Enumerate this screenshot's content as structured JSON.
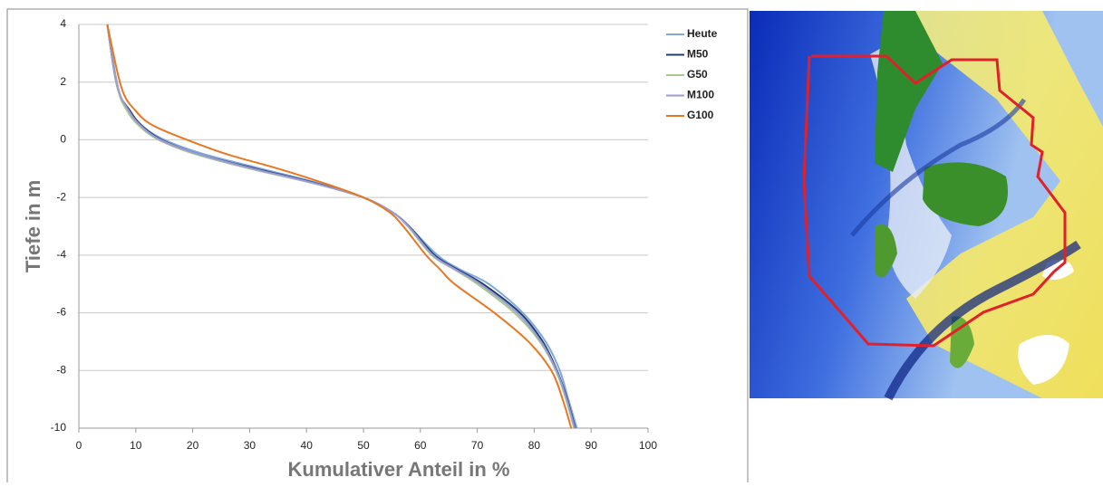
{
  "chart_data": {
    "type": "line",
    "xlabel": "Kumulativer Anteil in %",
    "ylabel": "Tiefe in m",
    "xlim": [
      0,
      100
    ],
    "xticks": [
      0,
      10,
      20,
      30,
      40,
      50,
      60,
      70,
      80,
      90,
      100
    ],
    "ylim": [
      -10,
      4
    ],
    "yticks": [
      -10,
      -8,
      -6,
      -4,
      -2,
      0,
      2,
      4
    ],
    "grid": true,
    "legend": "upper right",
    "series": [
      {
        "name": "Heute",
        "color": "#7fa9db",
        "x": [
          5,
          6.8,
          9,
          11,
          15,
          22,
          32,
          42,
          50,
          55,
          58,
          63,
          67,
          72,
          78,
          82,
          84.5,
          86,
          87.5
        ],
        "values": [
          4,
          1.8,
          1,
          0.5,
          0,
          -0.5,
          -1,
          -1.5,
          -2,
          -2.5,
          -3,
          -4,
          -4.5,
          -5,
          -6,
          -7,
          -8,
          -9,
          -10
        ]
      },
      {
        "name": "M50",
        "color": "#1f3b73",
        "x": [
          5,
          6.8,
          9,
          11,
          14.5,
          21,
          31,
          41.5,
          50,
          55,
          58,
          62.5,
          66.5,
          71,
          77.5,
          81.5,
          84,
          85.8,
          87.2
        ],
        "values": [
          4,
          1.8,
          1,
          0.5,
          0,
          -0.5,
          -1,
          -1.5,
          -2,
          -2.5,
          -3,
          -4,
          -4.5,
          -5,
          -6,
          -7,
          -8,
          -9,
          -10
        ]
      },
      {
        "name": "G50",
        "color": "#a8c98c",
        "x": [
          5,
          6.8,
          8.5,
          10.5,
          14,
          20.5,
          30,
          41,
          50,
          55,
          57.8,
          62,
          66,
          70,
          76.5,
          81,
          83.8,
          85.6,
          87
        ],
        "values": [
          4,
          1.8,
          1,
          0.5,
          0,
          -0.5,
          -1,
          -1.5,
          -2,
          -2.5,
          -3,
          -4,
          -4.5,
          -5,
          -6,
          -7,
          -8,
          -9,
          -10
        ]
      },
      {
        "name": "M100",
        "color": "#9d9bd4",
        "x": [
          5,
          6.9,
          8.8,
          10.8,
          14.3,
          21,
          30.5,
          41.2,
          50,
          55,
          57.9,
          62.2,
          66.2,
          70.5,
          77,
          81.2,
          83.9,
          85.7,
          87.1
        ],
        "values": [
          4,
          1.8,
          1,
          0.5,
          0,
          -0.5,
          -1,
          -1.5,
          -2,
          -2.5,
          -3,
          -4,
          -4.5,
          -5,
          -6,
          -7,
          -8,
          -9,
          -10
        ]
      },
      {
        "name": "G100",
        "color": "#e87722",
        "x": [
          5,
          7.5,
          10,
          13,
          19,
          26,
          35,
          43,
          50,
          54.5,
          57,
          61,
          63.5,
          66,
          73,
          79,
          83,
          85,
          86.5
        ],
        "values": [
          4,
          1.8,
          1,
          0.5,
          0,
          -0.5,
          -1,
          -1.5,
          -2,
          -2.5,
          -3,
          -4,
          -4.5,
          -5,
          -6,
          -7,
          -8,
          -9,
          -10
        ]
      }
    ]
  }
}
